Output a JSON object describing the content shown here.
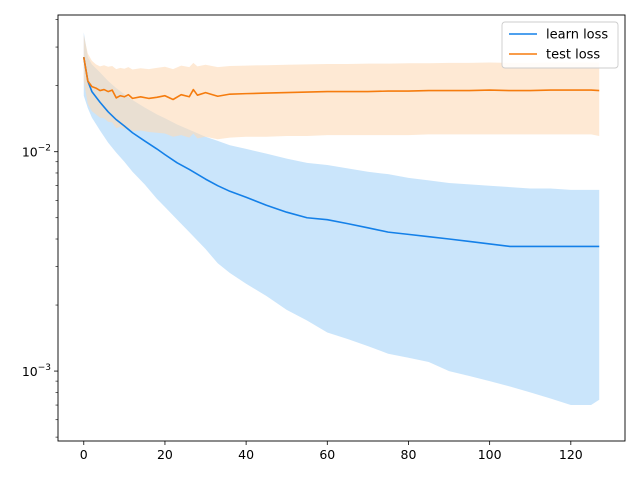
{
  "chart_data": {
    "type": "line",
    "title": "",
    "xlabel": "",
    "ylabel": "",
    "xlim": [
      -6.35,
      133.35
    ],
    "ylim": [
      0.00048,
      0.042
    ],
    "yscale": "log",
    "grid": false,
    "legend_position": "top-right",
    "x_ticks": [
      0,
      20,
      40,
      60,
      80,
      100,
      120
    ],
    "x_tick_labels": [
      "0",
      "20",
      "40",
      "60",
      "80",
      "100",
      "120"
    ],
    "y_major_ticks": [
      0.001,
      0.01
    ],
    "y_major_labels": [
      {
        "base": "10",
        "exp": "−3"
      },
      {
        "base": "10",
        "exp": "−2"
      }
    ],
    "series": [
      {
        "name": "learn loss",
        "color": "#1f77b4",
        "line_color": "#1480e8",
        "band_color": "#9ecff8",
        "x": [
          0,
          1,
          2,
          4,
          6,
          8,
          10,
          12,
          15,
          18,
          20,
          23,
          26,
          30,
          33,
          36,
          40,
          45,
          50,
          55,
          60,
          65,
          70,
          75,
          80,
          85,
          90,
          95,
          100,
          105,
          110,
          115,
          120,
          125,
          127
        ],
        "values": [
          0.027,
          0.021,
          0.0188,
          0.0168,
          0.0152,
          0.014,
          0.0131,
          0.0122,
          0.0112,
          0.0103,
          0.0097,
          0.0089,
          0.0083,
          0.0075,
          0.007,
          0.0066,
          0.0062,
          0.0057,
          0.0053,
          0.005,
          0.0049,
          0.0047,
          0.0045,
          0.0043,
          0.0042,
          0.0041,
          0.004,
          0.0039,
          0.0038,
          0.0037,
          0.0037,
          0.0037,
          0.0037,
          0.0037,
          0.0037
        ],
        "upper": [
          0.035,
          0.027,
          0.025,
          0.023,
          0.021,
          0.0195,
          0.0183,
          0.0172,
          0.0159,
          0.0148,
          0.0142,
          0.0133,
          0.0126,
          0.0117,
          0.0112,
          0.0107,
          0.0103,
          0.0098,
          0.0093,
          0.0089,
          0.0087,
          0.0084,
          0.0081,
          0.0079,
          0.0076,
          0.0074,
          0.0072,
          0.0071,
          0.007,
          0.0069,
          0.0068,
          0.0068,
          0.0067,
          0.0067,
          0.0067
        ],
        "lower": [
          0.018,
          0.0158,
          0.0143,
          0.0125,
          0.011,
          0.0099,
          0.009,
          0.0081,
          0.0071,
          0.0061,
          0.0056,
          0.0049,
          0.0043,
          0.0036,
          0.0031,
          0.0028,
          0.0025,
          0.0022,
          0.0019,
          0.0017,
          0.0015,
          0.0014,
          0.0013,
          0.0012,
          0.00115,
          0.0011,
          0.001,
          0.00095,
          0.0009,
          0.00085,
          0.0008,
          0.00075,
          0.0007,
          0.0007,
          0.00074
        ]
      },
      {
        "name": "test loss",
        "color": "#ff7f0e",
        "line_color": "#f57c0e",
        "band_color": "#fddbb8",
        "x": [
          0,
          1,
          2,
          3,
          4,
          5,
          6,
          7,
          8,
          9,
          10,
          11,
          12,
          14,
          16,
          18,
          20,
          22,
          24,
          26,
          27,
          28,
          30,
          33,
          36,
          40,
          45,
          50,
          55,
          60,
          65,
          70,
          75,
          80,
          85,
          90,
          95,
          100,
          105,
          110,
          115,
          120,
          125,
          127
        ],
        "values": [
          0.027,
          0.021,
          0.0198,
          0.0195,
          0.019,
          0.0192,
          0.0188,
          0.0191,
          0.0176,
          0.018,
          0.0178,
          0.0182,
          0.0175,
          0.0178,
          0.0175,
          0.0177,
          0.018,
          0.0173,
          0.0182,
          0.0178,
          0.0192,
          0.0181,
          0.0186,
          0.0179,
          0.0183,
          0.0184,
          0.0185,
          0.0186,
          0.0187,
          0.0188,
          0.0188,
          0.0188,
          0.0189,
          0.0189,
          0.019,
          0.019,
          0.019,
          0.0191,
          0.019,
          0.019,
          0.0191,
          0.0191,
          0.0191,
          0.019
        ],
        "upper": [
          0.034,
          0.028,
          0.026,
          0.025,
          0.0245,
          0.0248,
          0.0244,
          0.0246,
          0.0238,
          0.0241,
          0.0239,
          0.0243,
          0.0237,
          0.024,
          0.0238,
          0.0241,
          0.0244,
          0.0238,
          0.0247,
          0.0243,
          0.0254,
          0.0245,
          0.0249,
          0.0243,
          0.0246,
          0.0247,
          0.0248,
          0.0249,
          0.025,
          0.0251,
          0.0251,
          0.0252,
          0.0252,
          0.0253,
          0.0253,
          0.0254,
          0.0254,
          0.0255,
          0.0254,
          0.0254,
          0.0255,
          0.0255,
          0.0255,
          0.0255
        ],
        "lower": [
          0.021,
          0.0165,
          0.0153,
          0.0148,
          0.0143,
          0.0142,
          0.0137,
          0.0136,
          0.0128,
          0.013,
          0.0127,
          0.0129,
          0.0124,
          0.0125,
          0.0123,
          0.0122,
          0.0121,
          0.0117,
          0.0119,
          0.0116,
          0.0121,
          0.0115,
          0.0117,
          0.0114,
          0.0116,
          0.0117,
          0.0117,
          0.0118,
          0.0118,
          0.0119,
          0.0119,
          0.0119,
          0.0119,
          0.0119,
          0.012,
          0.012,
          0.012,
          0.012,
          0.012,
          0.012,
          0.012,
          0.012,
          0.012,
          0.0118
        ]
      }
    ]
  }
}
